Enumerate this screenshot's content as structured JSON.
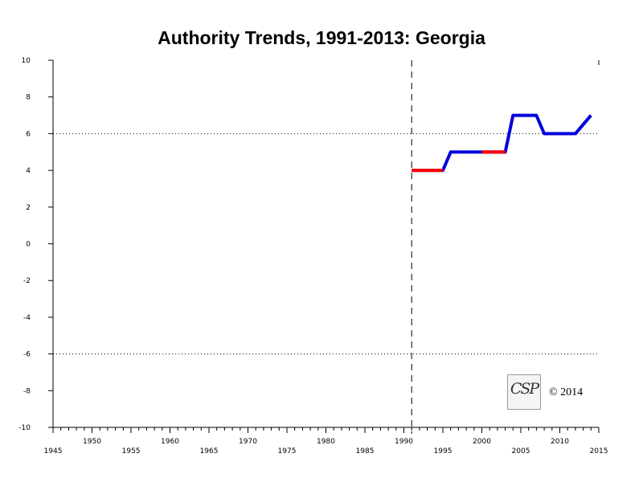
{
  "chart_data": {
    "type": "line",
    "title": "Authority Trends, 1991-2013: Georgia",
    "xlabel": "",
    "ylabel": "",
    "xlim": [
      1945,
      2015
    ],
    "ylim": [
      -10,
      10
    ],
    "x_tick_labels_upper": [
      "1950",
      "1960",
      "1970",
      "1980",
      "1990",
      "2000",
      "2010"
    ],
    "x_tick_labels_lower": [
      "1945",
      "1955",
      "1965",
      "1975",
      "1985",
      "1995",
      "2005",
      "2015"
    ],
    "y_tick_labels": [
      "10",
      "8",
      "6",
      "4",
      "2",
      "0",
      "-2",
      "-4",
      "-6",
      "-8",
      "-10"
    ],
    "reference_lines": {
      "horizontal_dotted": [
        6,
        -6
      ],
      "vertical_dashed": [
        1991
      ]
    },
    "grid": false,
    "series": [
      {
        "color": "#0000dd",
        "points": [
          [
            1991,
            4
          ],
          [
            1995,
            4
          ],
          [
            1996,
            5
          ],
          [
            2000,
            5
          ],
          [
            2003,
            5
          ],
          [
            2004,
            7
          ],
          [
            2007,
            7
          ],
          [
            2008,
            6
          ],
          [
            2012,
            6
          ],
          [
            2014,
            7
          ]
        ]
      },
      {
        "color": "#ff0000",
        "segments": [
          [
            [
              1991,
              4
            ],
            [
              1995,
              4
            ]
          ],
          [
            [
              2000,
              5
            ],
            [
              2003,
              5
            ]
          ]
        ]
      }
    ]
  },
  "logo": {
    "text": "CSP"
  },
  "copyright": "© 2014"
}
